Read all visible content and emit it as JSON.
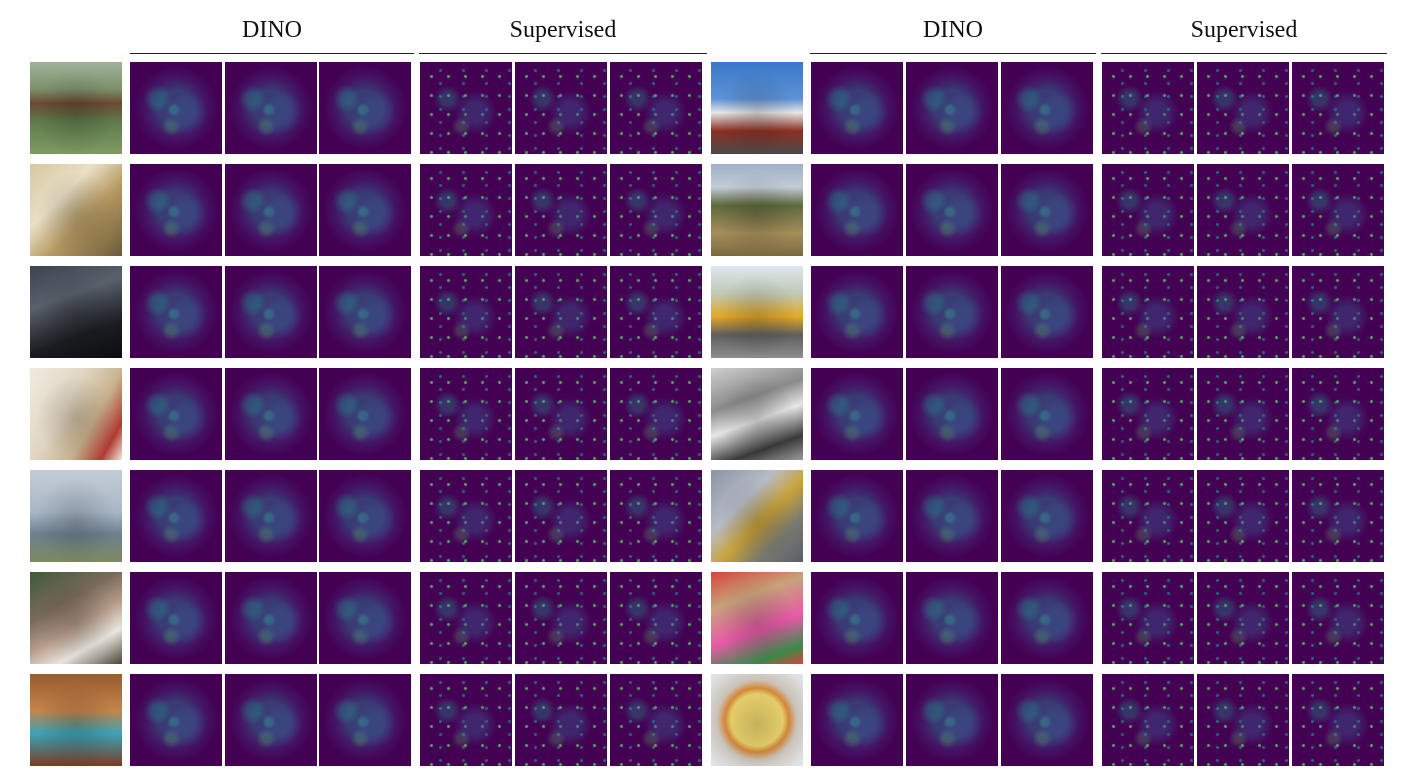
{
  "headers": [
    "DINO",
    "Supervised",
    "DINO",
    "Supervised"
  ],
  "left_images": [
    {
      "icon": "cows-photo",
      "class": "t-cows"
    },
    {
      "icon": "bathroom-photo",
      "class": "t-bath"
    },
    {
      "icon": "cat-on-car-photo",
      "class": "t-cat"
    },
    {
      "icon": "living-room-photo",
      "class": "t-room"
    },
    {
      "icon": "airplane-photo",
      "class": "t-plane"
    },
    {
      "icon": "dinner-table-photo",
      "class": "t-table"
    },
    {
      "icon": "suitcase-photo",
      "class": "t-suit"
    }
  ],
  "right_images": [
    {
      "icon": "clock-tower-photo",
      "class": "t-clock"
    },
    {
      "icon": "zebras-photo",
      "class": "t-zebra"
    },
    {
      "icon": "school-bus-photo",
      "class": "t-bus"
    },
    {
      "icon": "sheep-photo",
      "class": "t-sheep"
    },
    {
      "icon": "street-hydrant-photo",
      "class": "t-street"
    },
    {
      "icon": "teddy-bears-photo",
      "class": "t-bears"
    },
    {
      "icon": "pizza-photo",
      "class": "t-pizza"
    }
  ],
  "colors": {
    "map_background": "#440154",
    "rule": "#222222"
  }
}
